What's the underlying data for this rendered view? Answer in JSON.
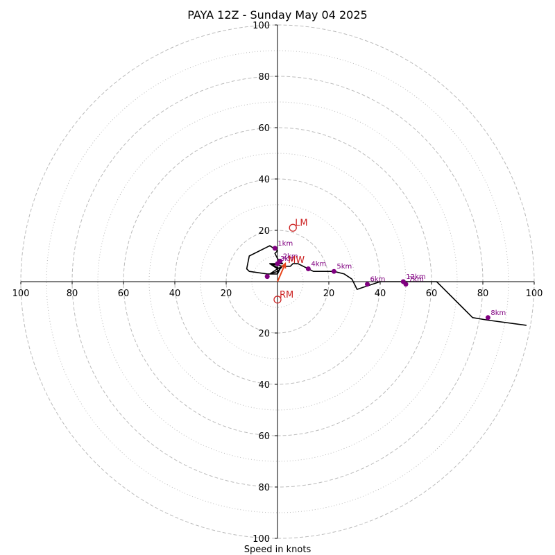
{
  "chart_data": {
    "type": "scatter",
    "subtype": "hodograph",
    "title": "PAYA 12Z - Sunday May 04 2025",
    "xlabel": "Speed in knots",
    "ylabel": "",
    "xlim": [
      -100,
      100
    ],
    "ylim": [
      -100,
      100
    ],
    "grid": true,
    "rings": {
      "major": [
        20,
        40,
        60,
        80,
        100
      ],
      "minor": [
        10,
        30,
        50,
        70,
        90
      ]
    },
    "x_tick_labels": [
      "100",
      "80",
      "60",
      "40",
      "20",
      "20",
      "40",
      "60",
      "80",
      "100"
    ],
    "x_tick_values": [
      -100,
      -80,
      -60,
      -40,
      -20,
      20,
      40,
      60,
      80,
      100
    ],
    "y_tick_labels": [
      "100",
      "80",
      "60",
      "40",
      "20",
      "20",
      "40",
      "60",
      "80",
      "100"
    ],
    "y_tick_values": [
      100,
      80,
      60,
      40,
      20,
      -20,
      -40,
      -60,
      -80,
      -100
    ],
    "hodograph_trace": {
      "name": "",
      "color": "#000000",
      "x": [
        0,
        0,
        -3,
        0,
        2,
        0,
        -1,
        0,
        -3,
        -11,
        -12,
        -11,
        -4,
        0,
        1,
        -3,
        2,
        0,
        -3,
        0,
        2,
        5,
        6,
        8,
        12,
        14,
        22,
        26,
        29,
        31,
        34,
        40,
        46,
        50,
        62,
        72,
        75,
        76,
        82,
        97
      ],
      "y": [
        3,
        5,
        7,
        7,
        7,
        9,
        11,
        12,
        14,
        10,
        5,
        4,
        3,
        3,
        5,
        7,
        6,
        4,
        3,
        5,
        6,
        6,
        7,
        7,
        5,
        4,
        4,
        3,
        1,
        -3,
        -2,
        0,
        0,
        0,
        0,
        -10,
        -13,
        -14,
        -15,
        -17
      ]
    },
    "height_markers": {
      "color": "#800080",
      "points": [
        {
          "label": "1km",
          "x": -1,
          "y": 13
        },
        {
          "label": "2km",
          "x": 1,
          "y": 8
        },
        {
          "label": "3km",
          "x": 0,
          "y": 7
        },
        {
          "label": "",
          "x": -4,
          "y": 2
        },
        {
          "label": "4km",
          "x": 12,
          "y": 5
        },
        {
          "label": "5km",
          "x": 22,
          "y": 4
        },
        {
          "label": "6km",
          "x": 35,
          "y": -1
        },
        {
          "label": "12km",
          "x": 49,
          "y": 0
        },
        {
          "label": "7km",
          "x": 50,
          "y": -1
        },
        {
          "label": "8km",
          "x": 82,
          "y": -14
        }
      ]
    },
    "storm_motion": {
      "color": "#cc2222",
      "points": [
        {
          "label": "LM",
          "x": 6,
          "y": 21
        },
        {
          "label": "RM",
          "x": 0,
          "y": -7
        }
      ],
      "mean_wind": {
        "label": "MW",
        "x": 3,
        "y": 7
      }
    }
  }
}
